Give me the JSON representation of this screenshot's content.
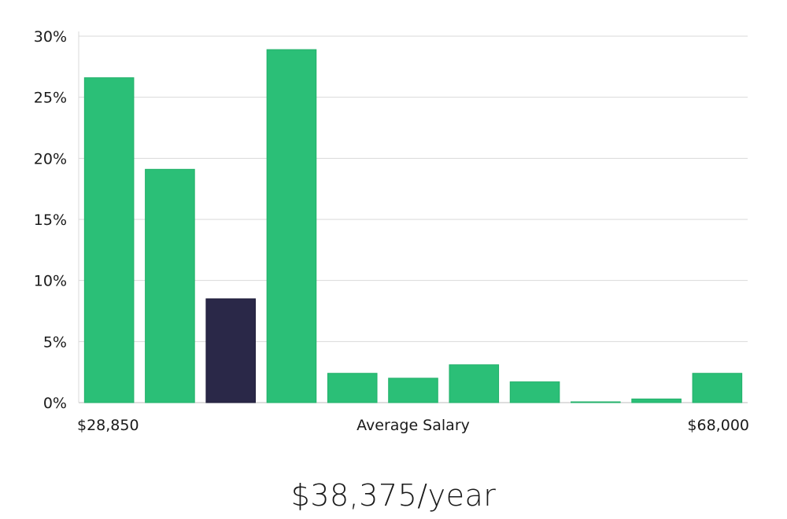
{
  "chart_data": {
    "type": "bar",
    "categories": [
      "1",
      "2",
      "3",
      "4",
      "5",
      "6",
      "7",
      "8",
      "9",
      "10",
      "11"
    ],
    "values": [
      26.6,
      19.1,
      8.5,
      28.9,
      2.4,
      2.0,
      3.1,
      1.7,
      0.05,
      0.3,
      2.4
    ],
    "highlight_index": 2,
    "ylim": [
      0,
      30
    ],
    "yticks": [
      0,
      5,
      10,
      15,
      20,
      25,
      30
    ],
    "ytick_labels": [
      "0%",
      "5%",
      "10%",
      "15%",
      "20%",
      "25%",
      "30%"
    ],
    "x_min_label": "$28,850",
    "x_max_label": "$68,000",
    "xlabel": "Average Salary",
    "grid": true,
    "colors": {
      "bar": "#2bbf77",
      "bar_edge": "#22b06a",
      "highlight": "#2a2848",
      "grid": "#d9d9d9",
      "axis": "#bdbdbd"
    }
  },
  "headline": "$38,375/year"
}
